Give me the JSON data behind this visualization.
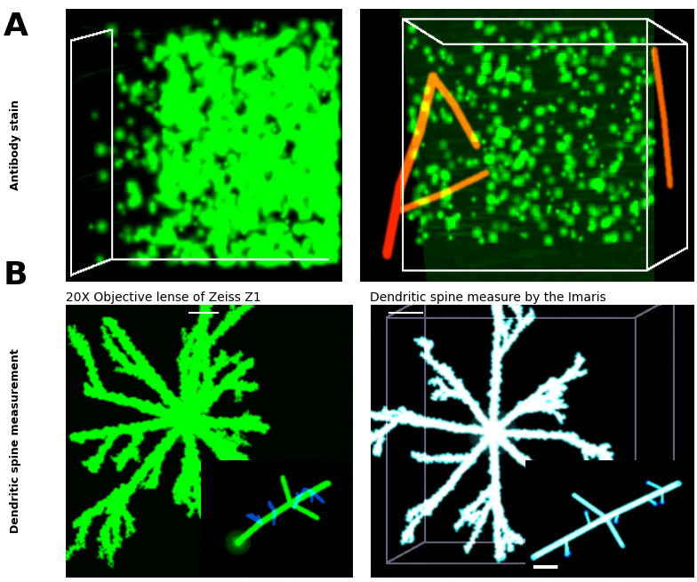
{
  "panel_A_label": "A",
  "panel_B_label": "B",
  "panel_A_ylabel": "Antibody stain",
  "panel_B_ylabel": "Dendritic spine measurement",
  "panel_B1_title": "20X Objective lense of Zeiss Z1",
  "panel_B2_title": "Dendritic spine measure by the Imaris",
  "background_color": "#ffffff",
  "label_fontsize": 26,
  "title_fontsize": 10,
  "ylabel_fontsize": 9,
  "fig_width": 7.84,
  "fig_height": 6.55,
  "dpi": 100
}
